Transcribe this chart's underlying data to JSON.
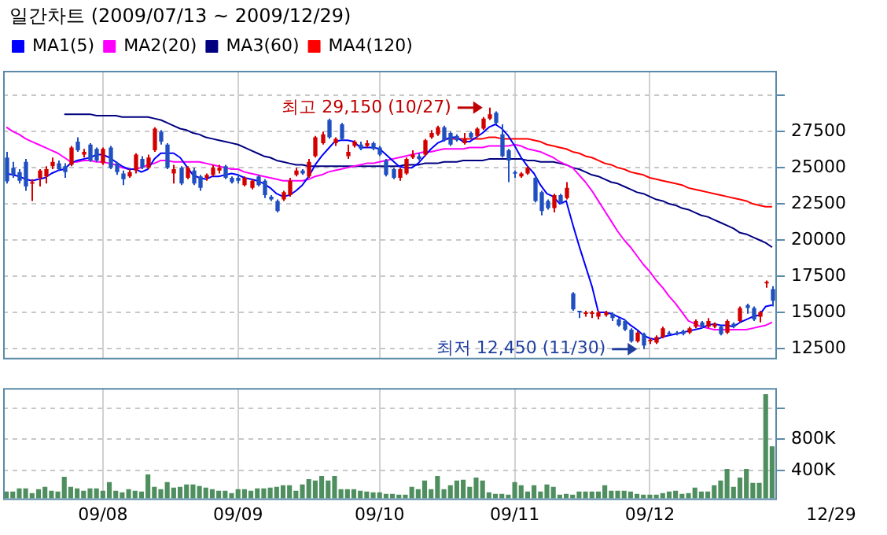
{
  "chart_data": [
    {
      "type": "candlestick",
      "title": "일간차트 (2009/07/13 ~ 2009/12/29)",
      "categories": [
        null,
        null,
        null,
        null,
        null,
        null,
        null,
        null,
        null,
        null,
        null,
        null,
        null,
        null,
        null,
        null,
        null,
        null,
        null,
        null,
        null,
        null,
        null,
        null,
        null,
        null,
        null,
        null,
        null,
        null,
        null,
        null,
        null,
        null,
        null,
        null,
        null,
        null,
        null,
        null,
        null,
        null,
        null,
        null,
        null,
        null,
        null,
        null,
        null,
        null,
        null,
        null,
        null,
        null,
        null,
        null,
        null,
        null,
        null,
        null,
        null,
        null,
        null,
        null,
        null,
        null,
        null,
        null,
        null,
        null,
        null,
        null,
        null,
        null,
        null,
        null,
        null,
        null,
        null,
        null,
        null,
        null,
        null,
        null,
        null,
        null,
        null,
        null,
        null,
        null,
        null,
        null,
        null,
        null,
        null,
        null,
        null,
        null,
        null,
        null,
        null,
        null,
        null,
        null,
        null,
        null,
        null,
        null,
        null,
        null,
        null,
        null,
        null,
        null,
        null,
        null,
        null,
        null,
        null,
        null
      ],
      "ohlc": [
        [
          25700,
          26100,
          23900,
          24050
        ],
        [
          25000,
          25400,
          24300,
          24500
        ],
        [
          24700,
          24900,
          23900,
          24100
        ],
        [
          25400,
          25600,
          23400,
          23700
        ],
        [
          23900,
          24200,
          22700,
          24000
        ],
        [
          24300,
          24900,
          23700,
          24800
        ],
        [
          24400,
          25100,
          23900,
          24900
        ],
        [
          25100,
          25700,
          24900,
          25400
        ],
        [
          25300,
          25500,
          24800,
          24900
        ],
        [
          25100,
          25300,
          24300,
          24700
        ],
        [
          25200,
          26500,
          25100,
          26400
        ],
        [
          26800,
          27100,
          26100,
          26200
        ],
        [
          25900,
          26300,
          25700,
          26100
        ],
        [
          26600,
          26700,
          25400,
          25500
        ],
        [
          26300,
          26400,
          25400,
          25500
        ],
        [
          25300,
          26400,
          25200,
          26300
        ],
        [
          26400,
          26500,
          24900,
          25000
        ],
        [
          25300,
          25400,
          24500,
          24700
        ],
        [
          24600,
          24800,
          23800,
          24200
        ],
        [
          24400,
          24900,
          24300,
          24700
        ],
        [
          24800,
          26000,
          24600,
          25900
        ],
        [
          25600,
          25800,
          24900,
          25000
        ],
        [
          25000,
          25900,
          24900,
          25700
        ],
        [
          26200,
          27800,
          26100,
          27700
        ],
        [
          27500,
          27600,
          26600,
          26800
        ],
        [
          26600,
          26700,
          24900,
          25000
        ],
        [
          24600,
          25200,
          23900,
          24900
        ],
        [
          25000,
          25100,
          23800,
          23900
        ],
        [
          24300,
          25100,
          24200,
          25000
        ],
        [
          24800,
          25000,
          23800,
          23900
        ],
        [
          24400,
          24500,
          23400,
          23600
        ],
        [
          24300,
          24600,
          24100,
          24500
        ],
        [
          24500,
          25200,
          24400,
          25000
        ],
        [
          24800,
          25200,
          24600,
          25000
        ],
        [
          25100,
          25200,
          24200,
          24300
        ],
        [
          24300,
          24400,
          23900,
          24000
        ],
        [
          24300,
          24500,
          23900,
          24100
        ],
        [
          23800,
          24400,
          23700,
          24300
        ],
        [
          23600,
          24200,
          23500,
          24100
        ],
        [
          24400,
          24500,
          23700,
          23800
        ],
        [
          24100,
          24200,
          22900,
          23100
        ],
        [
          23000,
          23100,
          22700,
          22800
        ],
        [
          22700,
          22800,
          21900,
          22000
        ],
        [
          22800,
          23400,
          22700,
          23300
        ],
        [
          23100,
          24300,
          23000,
          24100
        ],
        [
          24500,
          25000,
          24400,
          24800
        ],
        [
          24800,
          24900,
          24500,
          24600
        ],
        [
          24400,
          25600,
          24300,
          25400
        ],
        [
          25800,
          27200,
          25700,
          27100
        ],
        [
          26700,
          27500,
          26600,
          27300
        ],
        [
          28300,
          28400,
          27000,
          27100
        ],
        [
          26700,
          27100,
          26500,
          27000
        ],
        [
          28000,
          28100,
          26900,
          27000
        ],
        [
          25800,
          26600,
          25600,
          26100
        ],
        [
          26500,
          26900,
          26400,
          26800
        ],
        [
          26600,
          26800,
          26200,
          26300
        ],
        [
          26500,
          26900,
          26400,
          26700
        ],
        [
          26700,
          26800,
          26200,
          26300
        ],
        [
          26400,
          26500,
          25800,
          25900
        ],
        [
          25500,
          25600,
          24400,
          24500
        ],
        [
          24900,
          25000,
          24200,
          24300
        ],
        [
          24300,
          25000,
          24100,
          24900
        ],
        [
          24600,
          25700,
          24500,
          25600
        ],
        [
          25700,
          26200,
          25600,
          25900
        ],
        [
          25800,
          26000,
          25500,
          25600
        ],
        [
          25900,
          27000,
          25800,
          26900
        ],
        [
          27100,
          27600,
          27000,
          27400
        ],
        [
          27300,
          27900,
          27200,
          27800
        ],
        [
          27800,
          27900,
          26800,
          26900
        ],
        [
          27400,
          27500,
          26500,
          26600
        ],
        [
          27200,
          27300,
          26800,
          26900
        ],
        [
          26700,
          27400,
          26600,
          27000
        ],
        [
          27400,
          27500,
          27000,
          27100
        ],
        [
          27200,
          27800,
          27100,
          27700
        ],
        [
          27700,
          28500,
          27600,
          28400
        ],
        [
          28400,
          29150,
          28300,
          28700
        ],
        [
          28800,
          28900,
          28000,
          28100
        ],
        [
          27300,
          28000,
          25700,
          25800
        ],
        [
          26200,
          26300,
          24000,
          25500
        ],
        [
          24700,
          24800,
          24300,
          24600
        ],
        [
          24400,
          24700,
          24300,
          24600
        ],
        [
          24600,
          25100,
          24500,
          25000
        ],
        [
          24300,
          24400,
          22600,
          22700
        ],
        [
          23300,
          23400,
          21700,
          22000
        ],
        [
          22700,
          22800,
          22100,
          22200
        ],
        [
          22200,
          23200,
          21900,
          23100
        ],
        [
          23100,
          23200,
          22500,
          22600
        ],
        [
          22900,
          24000,
          22800,
          23600
        ],
        [
          16300,
          16400,
          15100,
          15200
        ],
        [
          15100,
          15100,
          14600,
          15000
        ],
        [
          15000,
          15100,
          14700,
          15000
        ],
        [
          15000,
          15100,
          14600,
          15000
        ],
        [
          14700,
          15100,
          14500,
          15000
        ],
        [
          14800,
          15100,
          14700,
          15000
        ],
        [
          14900,
          15000,
          14400,
          14600
        ],
        [
          14500,
          14600,
          14000,
          14100
        ],
        [
          14400,
          14500,
          13700,
          13800
        ],
        [
          13800,
          13900,
          12900,
          13000
        ],
        [
          13000,
          13700,
          12900,
          13600
        ],
        [
          13500,
          13600,
          12450,
          12700
        ],
        [
          13100,
          13200,
          12800,
          13100
        ],
        [
          12900,
          13400,
          12800,
          13300
        ],
        [
          13300,
          14000,
          13200,
          13900
        ],
        [
          13600,
          13700,
          13400,
          13500
        ],
        [
          13600,
          13700,
          13400,
          13500
        ],
        [
          13700,
          13800,
          13400,
          13500
        ],
        [
          13600,
          14000,
          13500,
          13900
        ],
        [
          14000,
          14500,
          13900,
          14400
        ],
        [
          14300,
          14400,
          13900,
          14000
        ],
        [
          14000,
          14600,
          13900,
          14400
        ],
        [
          14000,
          14300,
          13900,
          14200
        ],
        [
          14000,
          14100,
          13400,
          13500
        ],
        [
          13600,
          14500,
          13500,
          14400
        ],
        [
          14200,
          14300,
          13900,
          14000
        ],
        [
          14400,
          15400,
          14300,
          15300
        ],
        [
          15500,
          15600,
          14900,
          15300
        ],
        [
          15300,
          15400,
          14400,
          14500
        ],
        [
          14700,
          15100,
          14300,
          15000
        ],
        [
          17100,
          17200,
          16700,
          17100
        ],
        [
          16600,
          16800,
          15400,
          15800
        ]
      ],
      "series": [
        {
          "name": "MA1(5)",
          "type": "line",
          "color": "#0000ff",
          "values": [
            24600,
            24500,
            24400,
            24200,
            24100,
            24200,
            24300,
            24600,
            24800,
            24900,
            25300,
            25500,
            25600,
            25700,
            25900,
            25900,
            25700,
            25400,
            25100,
            24900,
            24900,
            24700,
            24900,
            25600,
            26000,
            26000,
            26000,
            25700,
            25100,
            24500,
            24300,
            24200,
            24400,
            24400,
            24500,
            24600,
            24500,
            24300,
            24200,
            24100,
            23900,
            23600,
            23200,
            23000,
            23100,
            23400,
            23800,
            24400,
            25200,
            25800,
            26300,
            26800,
            26900,
            26900,
            26800,
            26400,
            26400,
            26400,
            26300,
            25900,
            25500,
            25100,
            25000,
            25000,
            25300,
            25800,
            26300,
            26700,
            26900,
            27100,
            27100,
            26800,
            26800,
            27100,
            27400,
            27800,
            28000,
            27700,
            27200,
            26500,
            25700,
            25100,
            24600,
            23800,
            23200,
            23000,
            22500,
            22700,
            21100,
            19600,
            18200,
            16800,
            15000,
            15000,
            14900,
            14700,
            14500,
            14100,
            13800,
            13400,
            13200,
            13100,
            13300,
            13400,
            13500,
            13600,
            13700,
            13800,
            13900,
            14100,
            14200,
            14100,
            14100,
            14000,
            14300,
            14500,
            14700,
            14800,
            15400,
            15500
          ]
        },
        {
          "name": "MA2(20)",
          "type": "line",
          "color": "#ff00ff",
          "values": [
            27800,
            27500,
            27300,
            27000,
            26800,
            26600,
            26400,
            26200,
            26000,
            25700,
            25400,
            25400,
            25500,
            25500,
            25400,
            25400,
            25300,
            25200,
            25000,
            24900,
            24900,
            25000,
            25200,
            25300,
            25500,
            25500,
            25400,
            25400,
            25400,
            25400,
            25400,
            25300,
            25200,
            25100,
            25000,
            24900,
            24900,
            24700,
            24600,
            24500,
            24400,
            24300,
            24200,
            24100,
            24100,
            24100,
            24100,
            24200,
            24400,
            24500,
            24700,
            24800,
            24900,
            25000,
            25100,
            25200,
            25300,
            25300,
            25400,
            25500,
            25600,
            25700,
            25800,
            25900,
            26000,
            26100,
            26100,
            26200,
            26300,
            26300,
            26300,
            26300,
            26400,
            26400,
            26400,
            26500,
            26500,
            26500,
            26500,
            26600,
            26500,
            26300,
            26200,
            26100,
            25900,
            25700,
            25400,
            25200,
            25000,
            24500,
            24000,
            23400,
            22700,
            22000,
            21300,
            20600,
            20000,
            19500,
            18900,
            18300,
            17800,
            17200,
            16700,
            16100,
            15600,
            15000,
            14400,
            14200,
            14000,
            13900,
            13800,
            13800,
            13800,
            13800,
            13800,
            13800,
            13900,
            14000,
            14100,
            14300
          ]
        },
        {
          "name": "MA3(60)",
          "type": "line",
          "color": "#000080",
          "values": [
            null,
            null,
            null,
            null,
            null,
            null,
            null,
            null,
            null,
            28700,
            28700,
            28700,
            28700,
            28700,
            28600,
            28600,
            28600,
            28600,
            28500,
            28500,
            28500,
            28500,
            28500,
            28400,
            28300,
            28100,
            27900,
            27700,
            27600,
            27400,
            27300,
            27100,
            27000,
            26900,
            26800,
            26700,
            26600,
            26400,
            26200,
            26000,
            25800,
            25700,
            25500,
            25400,
            25300,
            25200,
            25200,
            25100,
            25100,
            25100,
            25100,
            25100,
            25100,
            25100,
            25100,
            25100,
            25100,
            25100,
            25100,
            25100,
            25100,
            25100,
            25200,
            25200,
            25200,
            25300,
            25300,
            25300,
            25400,
            25400,
            25400,
            25500,
            25500,
            25500,
            25500,
            25600,
            25600,
            25600,
            25600,
            25600,
            25600,
            25500,
            25500,
            25400,
            25400,
            25400,
            25300,
            25200,
            25000,
            24900,
            24700,
            24500,
            24400,
            24200,
            24000,
            23900,
            23700,
            23500,
            23300,
            23200,
            23000,
            22800,
            22700,
            22500,
            22400,
            22200,
            22100,
            21900,
            21700,
            21600,
            21400,
            21200,
            21000,
            20800,
            20500,
            20400,
            20200,
            20000,
            19800,
            19500
          ]
        },
        {
          "name": "MA4(120)",
          "type": "line",
          "color": "#ff0000",
          "values": [
            null,
            null,
            null,
            null,
            null,
            null,
            null,
            null,
            null,
            null,
            null,
            null,
            null,
            null,
            null,
            null,
            null,
            null,
            null,
            null,
            null,
            null,
            null,
            null,
            null,
            null,
            null,
            null,
            null,
            null,
            null,
            null,
            null,
            null,
            null,
            null,
            null,
            null,
            null,
            null,
            null,
            null,
            null,
            null,
            null,
            null,
            null,
            null,
            null,
            null,
            null,
            null,
            null,
            null,
            null,
            null,
            null,
            null,
            null,
            null,
            null,
            null,
            null,
            null,
            null,
            null,
            null,
            null,
            27000,
            27000,
            27000,
            27000,
            27000,
            27000,
            27000,
            27100,
            27100,
            27000,
            27000,
            27000,
            27000,
            27000,
            26900,
            26800,
            26600,
            26500,
            26400,
            26300,
            26100,
            26000,
            25800,
            25700,
            25500,
            25300,
            25200,
            25000,
            24900,
            24700,
            24600,
            24500,
            24300,
            24200,
            24100,
            24000,
            23900,
            23800,
            23600,
            23500,
            23400,
            23300,
            23200,
            23100,
            23000,
            22900,
            22800,
            22700,
            22500,
            22400,
            22300,
            22300
          ]
        }
      ],
      "ylim": [
        11850,
        31700
      ],
      "yticks": [
        12500,
        15000,
        17500,
        20000,
        22500,
        25000,
        27500,
        {
          "value": 30000,
          "label": null
        }
      ],
      "grid": true,
      "legend": "top left",
      "tick_labels": "y",
      "annotations": [
        "최고 29,150 (10/27)",
        "최저 12,450 (11/30)"
      ]
    },
    {
      "type": "bar",
      "categories": [
        null,
        null,
        null,
        null,
        null,
        null,
        null,
        null,
        null,
        null,
        null,
        null,
        null,
        null,
        null,
        "09/08",
        null,
        null,
        null,
        null,
        null,
        null,
        null,
        null,
        null,
        null,
        null,
        null,
        null,
        null,
        null,
        null,
        null,
        null,
        null,
        null,
        "09/09",
        null,
        null,
        null,
        null,
        null,
        null,
        null,
        null,
        null,
        null,
        null,
        null,
        null,
        null,
        null,
        null,
        null,
        null,
        null,
        null,
        null,
        "09/10",
        null,
        null,
        null,
        null,
        null,
        null,
        null,
        null,
        null,
        null,
        null,
        null,
        null,
        null,
        null,
        null,
        null,
        null,
        null,
        null,
        "09/11",
        null,
        null,
        null,
        null,
        null,
        null,
        null,
        null,
        null,
        null,
        null,
        null,
        null,
        null,
        null,
        null,
        null,
        null,
        null,
        null,
        "09/12",
        null,
        null,
        null,
        null,
        null,
        null,
        null,
        null,
        null,
        null,
        null,
        null,
        null,
        null,
        null,
        null,
        null,
        null,
        null
      ],
      "values": [
        130000,
        130000,
        170000,
        170000,
        110000,
        160000,
        190000,
        140000,
        130000,
        320000,
        190000,
        170000,
        140000,
        170000,
        170000,
        140000,
        250000,
        140000,
        120000,
        160000,
        140000,
        130000,
        350000,
        190000,
        160000,
        250000,
        180000,
        190000,
        220000,
        220000,
        200000,
        180000,
        160000,
        140000,
        140000,
        110000,
        160000,
        160000,
        140000,
        170000,
        170000,
        180000,
        190000,
        210000,
        210000,
        140000,
        220000,
        290000,
        270000,
        330000,
        270000,
        330000,
        160000,
        160000,
        160000,
        140000,
        130000,
        120000,
        120000,
        100000,
        100000,
        90000,
        90000,
        190000,
        160000,
        270000,
        160000,
        330000,
        160000,
        210000,
        270000,
        280000,
        190000,
        310000,
        270000,
        120000,
        100000,
        100000,
        90000,
        250000,
        210000,
        130000,
        210000,
        130000,
        220000,
        190000,
        90000,
        100000,
        90000,
        130000,
        130000,
        130000,
        130000,
        210000,
        140000,
        140000,
        140000,
        130000,
        100000,
        90000,
        90000,
        90000,
        110000,
        130000,
        140000,
        100000,
        110000,
        180000,
        130000,
        130000,
        210000,
        270000,
        420000,
        190000,
        310000,
        420000,
        240000,
        240000,
        1380000,
        710000
      ],
      "color": "#4f8f5f",
      "ylim": [
        40000,
        1460000
      ],
      "yticks": [
        {
          "value": 400000,
          "label": "400K"
        },
        {
          "value": 800000,
          "label": "800K"
        },
        {
          "value": 1200000,
          "label": null
        }
      ],
      "grid": true,
      "annotations": [
        "12/29"
      ]
    }
  ]
}
